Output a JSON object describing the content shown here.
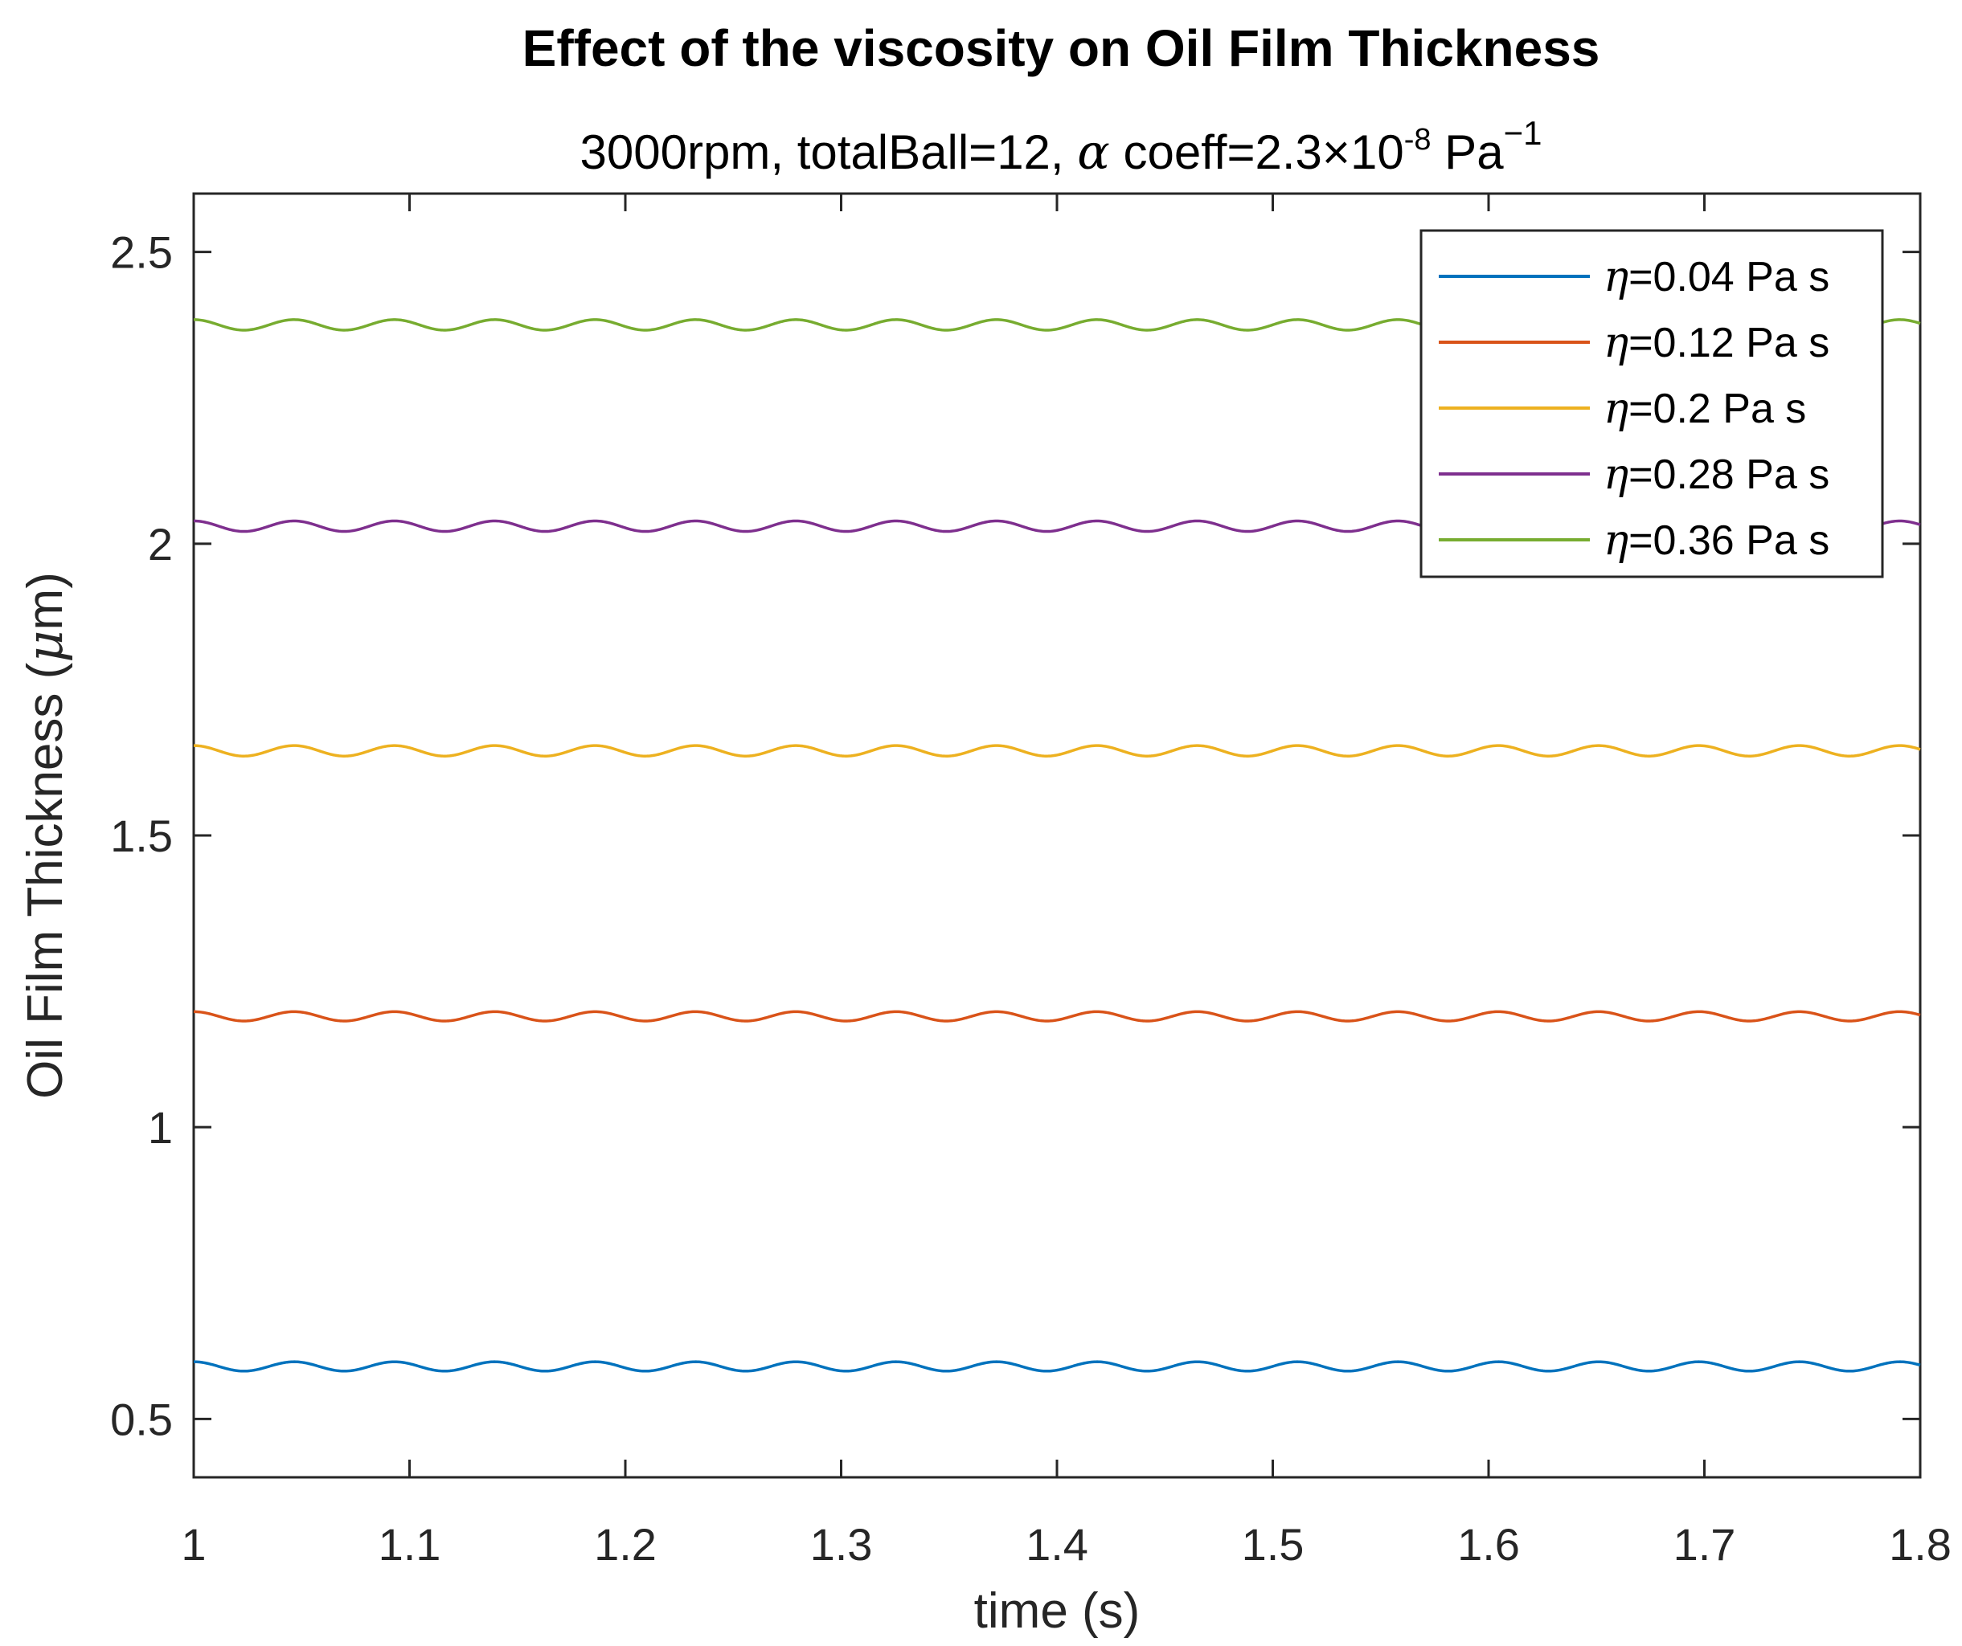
{
  "chart_data": {
    "type": "line",
    "title": "Effect of the viscosity on Oil Film Thickness",
    "subtitle": {
      "prefix": "3000rpm, totalBall=12, ",
      "alpha_symbol": "α",
      "coeff_text": " coeff=2.3×10",
      "coeff_exponent": "-8",
      "unit_text": " Pa",
      "unit_exponent": "−1"
    },
    "xlabel": "time (s)",
    "ylabel": {
      "prefix": "Oil Film Thickness (",
      "mu_symbol": "μ",
      "suffix": "m)"
    },
    "xlim": [
      1,
      1.8
    ],
    "ylim": [
      0.4,
      2.6
    ],
    "x_ticks": [
      1,
      1.1,
      1.2,
      1.3,
      1.4,
      1.5,
      1.6,
      1.7,
      1.8
    ],
    "x_tick_labels": [
      "1",
      "1.1",
      "1.2",
      "1.3",
      "1.4",
      "1.5",
      "1.6",
      "1.7",
      "1.8"
    ],
    "y_ticks": [
      0.5,
      1,
      1.5,
      2,
      2.5
    ],
    "y_tick_labels": [
      "0.5",
      "1",
      "1.5",
      "2",
      "2.5"
    ],
    "grid": false,
    "legend_position": "top-right",
    "oscillation": {
      "period_s": 0.0465,
      "phase_peak_at_s": 1.0
    },
    "series": [
      {
        "name_symbol": "η",
        "name_text": "=0.04 Pa s",
        "mean": 0.59,
        "amplitude": 0.008,
        "color": "#0072BD"
      },
      {
        "name_symbol": "η",
        "name_text": "=0.12 Pa s",
        "mean": 1.19,
        "amplitude": 0.008,
        "color": "#D95319"
      },
      {
        "name_symbol": "η",
        "name_text": "=0.2 Pa s",
        "mean": 1.645,
        "amplitude": 0.009,
        "color": "#EDB120"
      },
      {
        "name_symbol": "η",
        "name_text": "=0.28 Pa s",
        "mean": 2.03,
        "amplitude": 0.009,
        "color": "#7E2F8E"
      },
      {
        "name_symbol": "η",
        "name_text": "=0.36 Pa s",
        "mean": 2.375,
        "amplitude": 0.009,
        "color": "#77AC30"
      }
    ]
  }
}
